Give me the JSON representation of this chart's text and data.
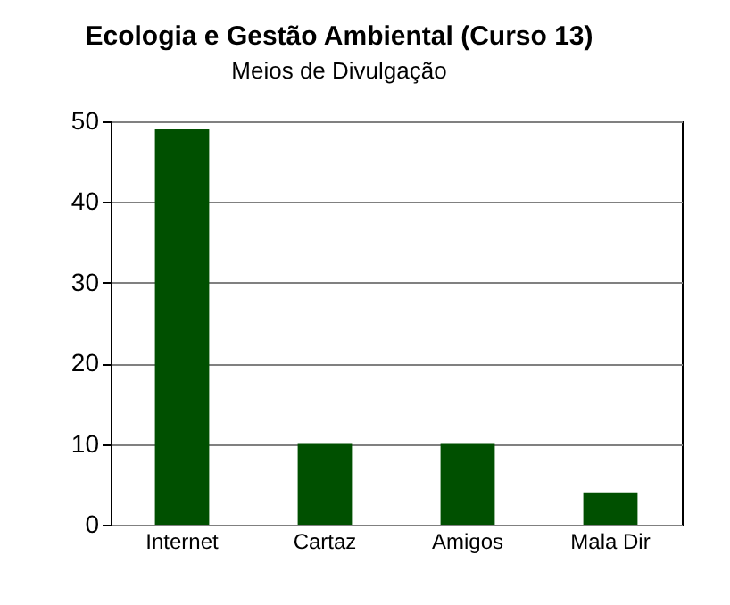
{
  "chart_data": {
    "type": "bar",
    "title": "Ecologia e Gestão Ambiental (Curso 13)",
    "subtitle": "Meios de Divulgação",
    "categories": [
      "Internet",
      "Cartaz",
      "Amigos",
      "Mala Dir"
    ],
    "values": [
      49,
      10,
      10,
      4
    ],
    "color": "#005000",
    "ylim": [
      0,
      50
    ],
    "yticks": [
      0,
      10,
      20,
      30,
      40,
      50
    ],
    "grid": "y"
  }
}
